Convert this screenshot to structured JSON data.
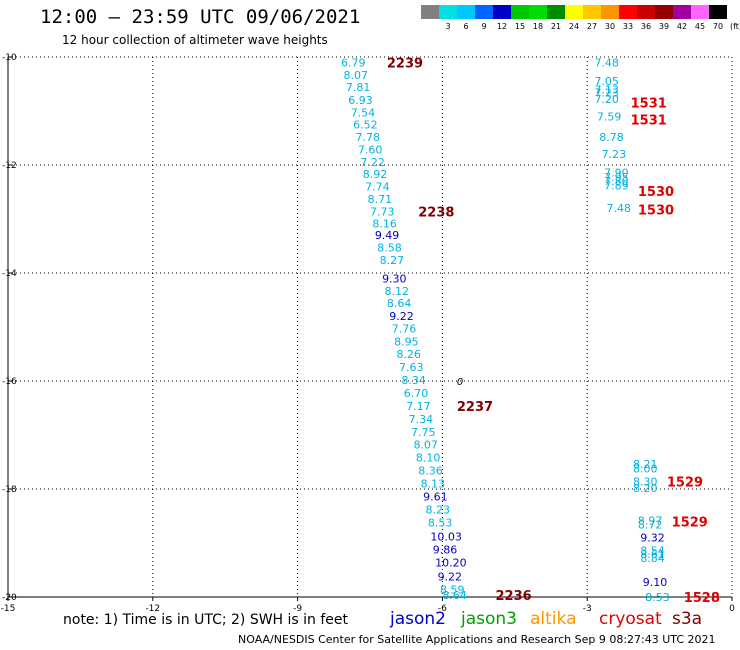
{
  "header": {
    "title": "12:00 – 23:59 UTC 09/06/2021",
    "subtitle": "12 hour collection of altimeter wave heights"
  },
  "color_scale": {
    "unit": "(ft)",
    "swatches": [
      {
        "label": "",
        "color": "#808080"
      },
      {
        "label": "3",
        "color": "#00e0e0"
      },
      {
        "label": "6",
        "color": "#00c8ff"
      },
      {
        "label": "9",
        "color": "#0064ff"
      },
      {
        "label": "12",
        "color": "#0000c8"
      },
      {
        "label": "15",
        "color": "#00c800"
      },
      {
        "label": "18",
        "color": "#00dc00"
      },
      {
        "label": "21",
        "color": "#008c00"
      },
      {
        "label": "24",
        "color": "#ffff00"
      },
      {
        "label": "27",
        "color": "#ffc800"
      },
      {
        "label": "30",
        "color": "#ff9600"
      },
      {
        "label": "33",
        "color": "#ff0000"
      },
      {
        "label": "36",
        "color": "#c80000"
      },
      {
        "label": "39",
        "color": "#960000"
      },
      {
        "label": "42",
        "color": "#a000a0"
      },
      {
        "label": "45",
        "color": "#ff64ff"
      },
      {
        "label": "70",
        "color": "#000000"
      }
    ]
  },
  "footer": {
    "note": "note: 1) Time is in UTC; 2) SWH is in feet",
    "credit": "NOAA/NESDIS Center for Satellite Applications and Research   Sep  9 08:27:43 UTC 2021"
  },
  "legend": [
    {
      "name": "jason2",
      "color": "#0000c8"
    },
    {
      "name": "jason3",
      "color": "#00a000"
    },
    {
      "name": "altika",
      "color": "#ff9600"
    },
    {
      "name": "cryosat",
      "color": "#e00000"
    },
    {
      "name": "s3a",
      "color": "#800000"
    }
  ],
  "chart_data": {
    "type": "scatter",
    "xlim": [
      -15,
      0
    ],
    "ylim": [
      -20,
      -10
    ],
    "x_ticks": [
      -15,
      -12,
      -9,
      -6,
      -3,
      0
    ],
    "y_ticks": [
      -10,
      -12,
      -14,
      -16,
      -18,
      -20
    ],
    "x_tick_labels": [
      "-15",
      "-12",
      "-9",
      "-6",
      "-3",
      "0"
    ],
    "y_tick_labels": [
      "-10",
      "-12",
      "-14",
      "-16",
      "-18",
      "-20"
    ],
    "grid": true,
    "series": [
      {
        "name": "track-west",
        "points": [
          {
            "x": -8.1,
            "y": -10.1,
            "v": "6.79",
            "c": "#00b4e0"
          },
          {
            "x": -8.05,
            "y": -10.33,
            "v": "8.07",
            "c": "#00b4e0"
          },
          {
            "x": -8.0,
            "y": -10.56,
            "v": "7.81",
            "c": "#00b4e0"
          },
          {
            "x": -7.95,
            "y": -10.8,
            "v": "6.93",
            "c": "#00b4e0"
          },
          {
            "x": -7.9,
            "y": -11.03,
            "v": "7.54",
            "c": "#00b4e0"
          },
          {
            "x": -7.85,
            "y": -11.25,
            "v": "6.52",
            "c": "#00b4e0"
          },
          {
            "x": -7.8,
            "y": -11.48,
            "v": "7.78",
            "c": "#00b4e0"
          },
          {
            "x": -7.75,
            "y": -11.71,
            "v": "7.60",
            "c": "#00b4e0"
          },
          {
            "x": -7.7,
            "y": -11.94,
            "v": "7.22",
            "c": "#00b4e0"
          },
          {
            "x": -7.65,
            "y": -12.17,
            "v": "8.92",
            "c": "#00b4e0"
          },
          {
            "x": -7.6,
            "y": -12.4,
            "v": "7.74",
            "c": "#00b4e0"
          },
          {
            "x": -7.55,
            "y": -12.63,
            "v": "8.71",
            "c": "#00b4e0"
          },
          {
            "x": -7.5,
            "y": -12.86,
            "v": "7.73",
            "c": "#00b4e0"
          },
          {
            "x": -7.45,
            "y": -13.08,
            "v": "8.16",
            "c": "#00b4e0"
          },
          {
            "x": -7.4,
            "y": -13.3,
            "v": "9.49",
            "c": "#0000c8"
          },
          {
            "x": -7.35,
            "y": -13.53,
            "v": "8.58",
            "c": "#00b4e0"
          },
          {
            "x": -7.3,
            "y": -13.76,
            "v": "8.27",
            "c": "#00b4e0"
          },
          {
            "x": -7.25,
            "y": -14.1,
            "v": "9.30",
            "c": "#0000c8"
          },
          {
            "x": -7.2,
            "y": -14.33,
            "v": "8.12",
            "c": "#00b4e0"
          },
          {
            "x": -7.15,
            "y": -14.56,
            "v": "8.64",
            "c": "#00b4e0"
          },
          {
            "x": -7.1,
            "y": -14.8,
            "v": "9.22",
            "c": "#0000c8"
          },
          {
            "x": -7.05,
            "y": -15.03,
            "v": "7.76",
            "c": "#00b4e0"
          },
          {
            "x": -7.0,
            "y": -15.27,
            "v": "8.95",
            "c": "#00b4e0"
          },
          {
            "x": -6.95,
            "y": -15.5,
            "v": "8.26",
            "c": "#00b4e0"
          },
          {
            "x": -6.9,
            "y": -15.74,
            "v": "7.63",
            "c": "#00b4e0"
          },
          {
            "x": -6.85,
            "y": -15.98,
            "v": "8.34",
            "c": "#00b4e0"
          },
          {
            "x": -6.8,
            "y": -16.22,
            "v": "6.70",
            "c": "#00b4e0"
          },
          {
            "x": -6.75,
            "y": -16.46,
            "v": "7.17",
            "c": "#00b4e0"
          },
          {
            "x": -6.7,
            "y": -16.7,
            "v": "7.34",
            "c": "#00b4e0"
          },
          {
            "x": -6.65,
            "y": -16.94,
            "v": "7.75",
            "c": "#00b4e0"
          },
          {
            "x": -6.6,
            "y": -17.18,
            "v": "8.07",
            "c": "#00b4e0"
          },
          {
            "x": -6.55,
            "y": -17.42,
            "v": "8.10",
            "c": "#00b4e0"
          },
          {
            "x": -6.5,
            "y": -17.66,
            "v": "8.36",
            "c": "#00b4e0"
          },
          {
            "x": -6.45,
            "y": -17.9,
            "v": "8.13",
            "c": "#00b4e0"
          },
          {
            "x": -6.4,
            "y": -18.14,
            "v": "9.61",
            "c": "#0000c8"
          },
          {
            "x": -6.35,
            "y": -18.38,
            "v": "8.23",
            "c": "#00b4e0"
          },
          {
            "x": -6.3,
            "y": -18.62,
            "v": "8.53",
            "c": "#00b4e0"
          },
          {
            "x": -6.25,
            "y": -18.88,
            "v": "10.03",
            "c": "#0000c8"
          },
          {
            "x": -6.2,
            "y": -19.12,
            "v": "9.86",
            "c": "#0000c8"
          },
          {
            "x": -6.15,
            "y": -19.36,
            "v": "10.20",
            "c": "#0000c8"
          },
          {
            "x": -6.1,
            "y": -19.62,
            "v": "9.22",
            "c": "#0000c8"
          },
          {
            "x": -6.05,
            "y": -19.86,
            "v": "8.59",
            "c": "#00b4e0"
          },
          {
            "x": -6.0,
            "y": -19.96,
            "v": "8.64",
            "c": "#00b4e0"
          }
        ]
      },
      {
        "name": "track-east-1",
        "points": [
          {
            "x": -2.85,
            "y": -10.1,
            "v": "7.48",
            "c": "#00b4e0"
          },
          {
            "x": -2.85,
            "y": -10.44,
            "v": "7.05",
            "c": "#00b4e0"
          },
          {
            "x": -2.85,
            "y": -10.6,
            "v": "7.13",
            "c": "#00b4e0"
          },
          {
            "x": -2.85,
            "y": -10.66,
            "v": "7.23",
            "c": "#00b4e0"
          },
          {
            "x": -2.85,
            "y": -10.78,
            "v": "7.20",
            "c": "#00b4e0"
          },
          {
            "x": -2.8,
            "y": -11.1,
            "v": "7.59",
            "c": "#00b4e0"
          },
          {
            "x": -2.75,
            "y": -11.48,
            "v": "8.78",
            "c": "#00b4e0"
          },
          {
            "x": -2.7,
            "y": -11.8,
            "v": "7.23",
            "c": "#00b4e0"
          },
          {
            "x": -2.65,
            "y": -12.14,
            "v": "7.90",
            "c": "#00b4e0"
          },
          {
            "x": -2.65,
            "y": -12.22,
            "v": "7.95",
            "c": "#00b4e0"
          },
          {
            "x": -2.65,
            "y": -12.3,
            "v": "7.80",
            "c": "#00b4e0"
          },
          {
            "x": -2.65,
            "y": -12.38,
            "v": "7.89",
            "c": "#00b4e0"
          },
          {
            "x": -2.6,
            "y": -12.8,
            "v": "7.48",
            "c": "#00b4e0"
          }
        ]
      },
      {
        "name": "track-east-2",
        "points": [
          {
            "x": -2.05,
            "y": -17.54,
            "v": "8.21",
            "c": "#00b4e0"
          },
          {
            "x": -2.05,
            "y": -17.62,
            "v": "8.00",
            "c": "#00b4e0"
          },
          {
            "x": -2.05,
            "y": -17.86,
            "v": "8.30",
            "c": "#00b4e0"
          },
          {
            "x": -2.05,
            "y": -17.98,
            "v": "8.20",
            "c": "#00b4e0"
          },
          {
            "x": -1.95,
            "y": -18.58,
            "v": "8.97",
            "c": "#00b4e0"
          },
          {
            "x": -1.95,
            "y": -18.66,
            "v": "8.72",
            "c": "#00b4e0"
          },
          {
            "x": -1.9,
            "y": -18.9,
            "v": "9.32",
            "c": "#0000c8"
          },
          {
            "x": -1.9,
            "y": -19.14,
            "v": "8.54",
            "c": "#00b4e0"
          },
          {
            "x": -1.9,
            "y": -19.2,
            "v": "8.61",
            "c": "#00b4e0"
          },
          {
            "x": -1.9,
            "y": -19.28,
            "v": "8.84",
            "c": "#00b4e0"
          },
          {
            "x": -1.85,
            "y": -19.72,
            "v": "9.10",
            "c": "#0000c8"
          },
          {
            "x": -1.8,
            "y": -20.0,
            "v": "8.53",
            "c": "#00b4e0"
          }
        ]
      }
    ],
    "time_labels": [
      {
        "x": -7.15,
        "y": -10.1,
        "t": "2239",
        "c": "#800000"
      },
      {
        "x": -6.5,
        "y": -12.86,
        "t": "2238",
        "c": "#800000"
      },
      {
        "x": -5.7,
        "y": -16.46,
        "t": "2237",
        "c": "#800000"
      },
      {
        "x": -4.9,
        "y": -19.96,
        "t": "2236",
        "c": "#800000"
      },
      {
        "x": -2.1,
        "y": -10.84,
        "t": "1531",
        "c": "#e00000"
      },
      {
        "x": -2.1,
        "y": -11.16,
        "t": "1531",
        "c": "#e00000"
      },
      {
        "x": -1.95,
        "y": -12.48,
        "t": "1530",
        "c": "#e00000"
      },
      {
        "x": -1.95,
        "y": -12.82,
        "t": "1530",
        "c": "#e00000"
      },
      {
        "x": -1.35,
        "y": -17.86,
        "t": "1529",
        "c": "#e00000"
      },
      {
        "x": -1.25,
        "y": -18.6,
        "t": "1529",
        "c": "#e00000"
      },
      {
        "x": -1.0,
        "y": -20.0,
        "t": "1528",
        "c": "#e00000"
      }
    ],
    "marker": {
      "x": -5.7,
      "y": -16.0,
      "t": "0"
    }
  }
}
